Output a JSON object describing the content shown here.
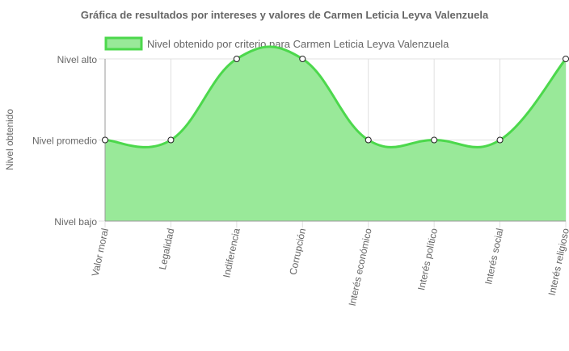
{
  "chart_data": {
    "type": "area",
    "title": "Gráfica de resultados por intereses y valores de Carmen Leticia Leyva Valenzuela",
    "ylabel": "Nivel obtenido",
    "xlabel": "",
    "categories": [
      "Valor moral",
      "Legalidad",
      "Indiferencia",
      "Corrupción",
      "Interés económico",
      "Interés político",
      "Interés social",
      "Interés religioso"
    ],
    "y_levels": [
      "Nivel bajo",
      "Nivel promedio",
      "Nivel alto"
    ],
    "ylim": [
      0,
      2
    ],
    "series": [
      {
        "name": "Nivel obtenido por criterio para Carmen Leticia Leyva Valenzuela",
        "values": [
          1,
          1,
          2,
          2,
          1,
          1,
          1,
          2
        ],
        "line_color": "#4cd84c",
        "fill_color": "#99e999"
      }
    ],
    "legend_position": "top",
    "grid": true,
    "smooth": true
  }
}
